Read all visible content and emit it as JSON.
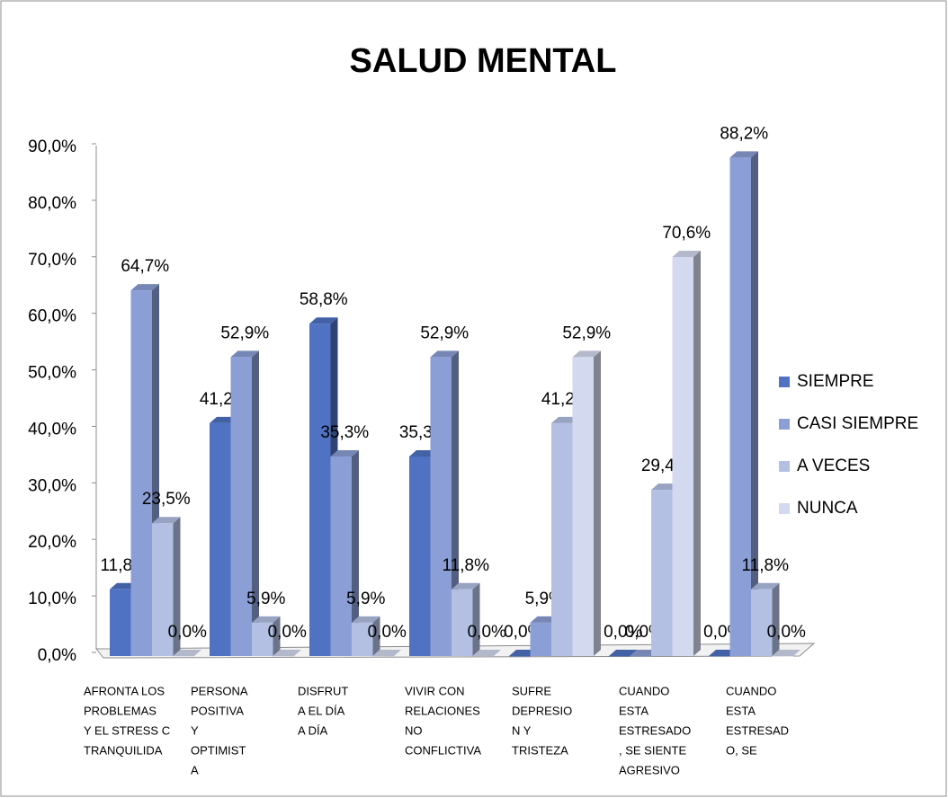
{
  "chart_data": {
    "type": "bar3d",
    "title": "SALUD MENTAL",
    "categories": [
      [
        "AFRONTA LOS",
        "PROBLEMAS",
        "Y EL STRESS C",
        "TRANQUILIDA"
      ],
      [
        "PERSONA",
        "POSITIVA",
        "Y",
        "OPTIMIST",
        "A"
      ],
      [
        "DISFRUT",
        "A EL DÍA",
        "A DÍA"
      ],
      [
        "VIVIR CON",
        "RELACIONES",
        "NO",
        "CONFLICTIVA"
      ],
      [
        "SUFRE",
        "DEPRESIO",
        "N Y",
        "TRISTEZA"
      ],
      [
        "CUANDO",
        "ESTA",
        "ESTRESADO",
        ", SE SIENTE",
        "AGRESIVO"
      ],
      [
        "CUANDO",
        "ESTA",
        "ESTRESAD",
        "O, SE"
      ]
    ],
    "series": [
      {
        "name": "SIEMPRE",
        "color": "#4f72c2",
        "values": [
          11.8,
          41.2,
          58.8,
          35.3,
          0,
          0,
          0
        ],
        "value_labels": [
          "11,8%",
          "41,2%",
          "58,8%",
          "35,3%",
          "0,0%",
          "0,0%",
          "0,0%"
        ]
      },
      {
        "name": "CASI SIEMPRE",
        "color": "#8b9fd6",
        "values": [
          64.7,
          52.9,
          35.3,
          52.9,
          5.9,
          0,
          88.2
        ],
        "value_labels": [
          "64,7%",
          "52,9%",
          "35,3%",
          "52,9%",
          "5,9%",
          "0,0%",
          "88,2%"
        ]
      },
      {
        "name": "A VECES",
        "color": "#b3c0e4",
        "values": [
          23.5,
          5.9,
          5.9,
          11.8,
          41.2,
          29.4,
          11.8
        ],
        "value_labels": [
          "23,5%",
          "5,9%",
          "5,9%",
          "11,8%",
          "41,2%",
          "29,4%",
          "11,8%"
        ]
      },
      {
        "name": "NUNCA",
        "color": "#d3d9ee",
        "values": [
          0,
          0,
          0,
          0,
          52.9,
          70.6,
          0
        ],
        "value_labels": [
          "0,0%",
          "0,0%",
          "0,0%",
          "0,0%",
          "52,9%",
          "70,6%",
          "0,0%"
        ]
      }
    ],
    "ylim": [
      0,
      90
    ],
    "yticks": [
      {
        "value": 0,
        "label": "0,0%"
      },
      {
        "value": 10,
        "label": "10,0%"
      },
      {
        "value": 20,
        "label": "20,0%"
      },
      {
        "value": 30,
        "label": "30,0%"
      },
      {
        "value": 40,
        "label": "40,0%"
      },
      {
        "value": 50,
        "label": "50,0%"
      },
      {
        "value": 60,
        "label": "60,0%"
      },
      {
        "value": 70,
        "label": "70,0%"
      },
      {
        "value": 80,
        "label": "80,0%"
      },
      {
        "value": 90,
        "label": "90,0%"
      }
    ],
    "legend": "right"
  }
}
